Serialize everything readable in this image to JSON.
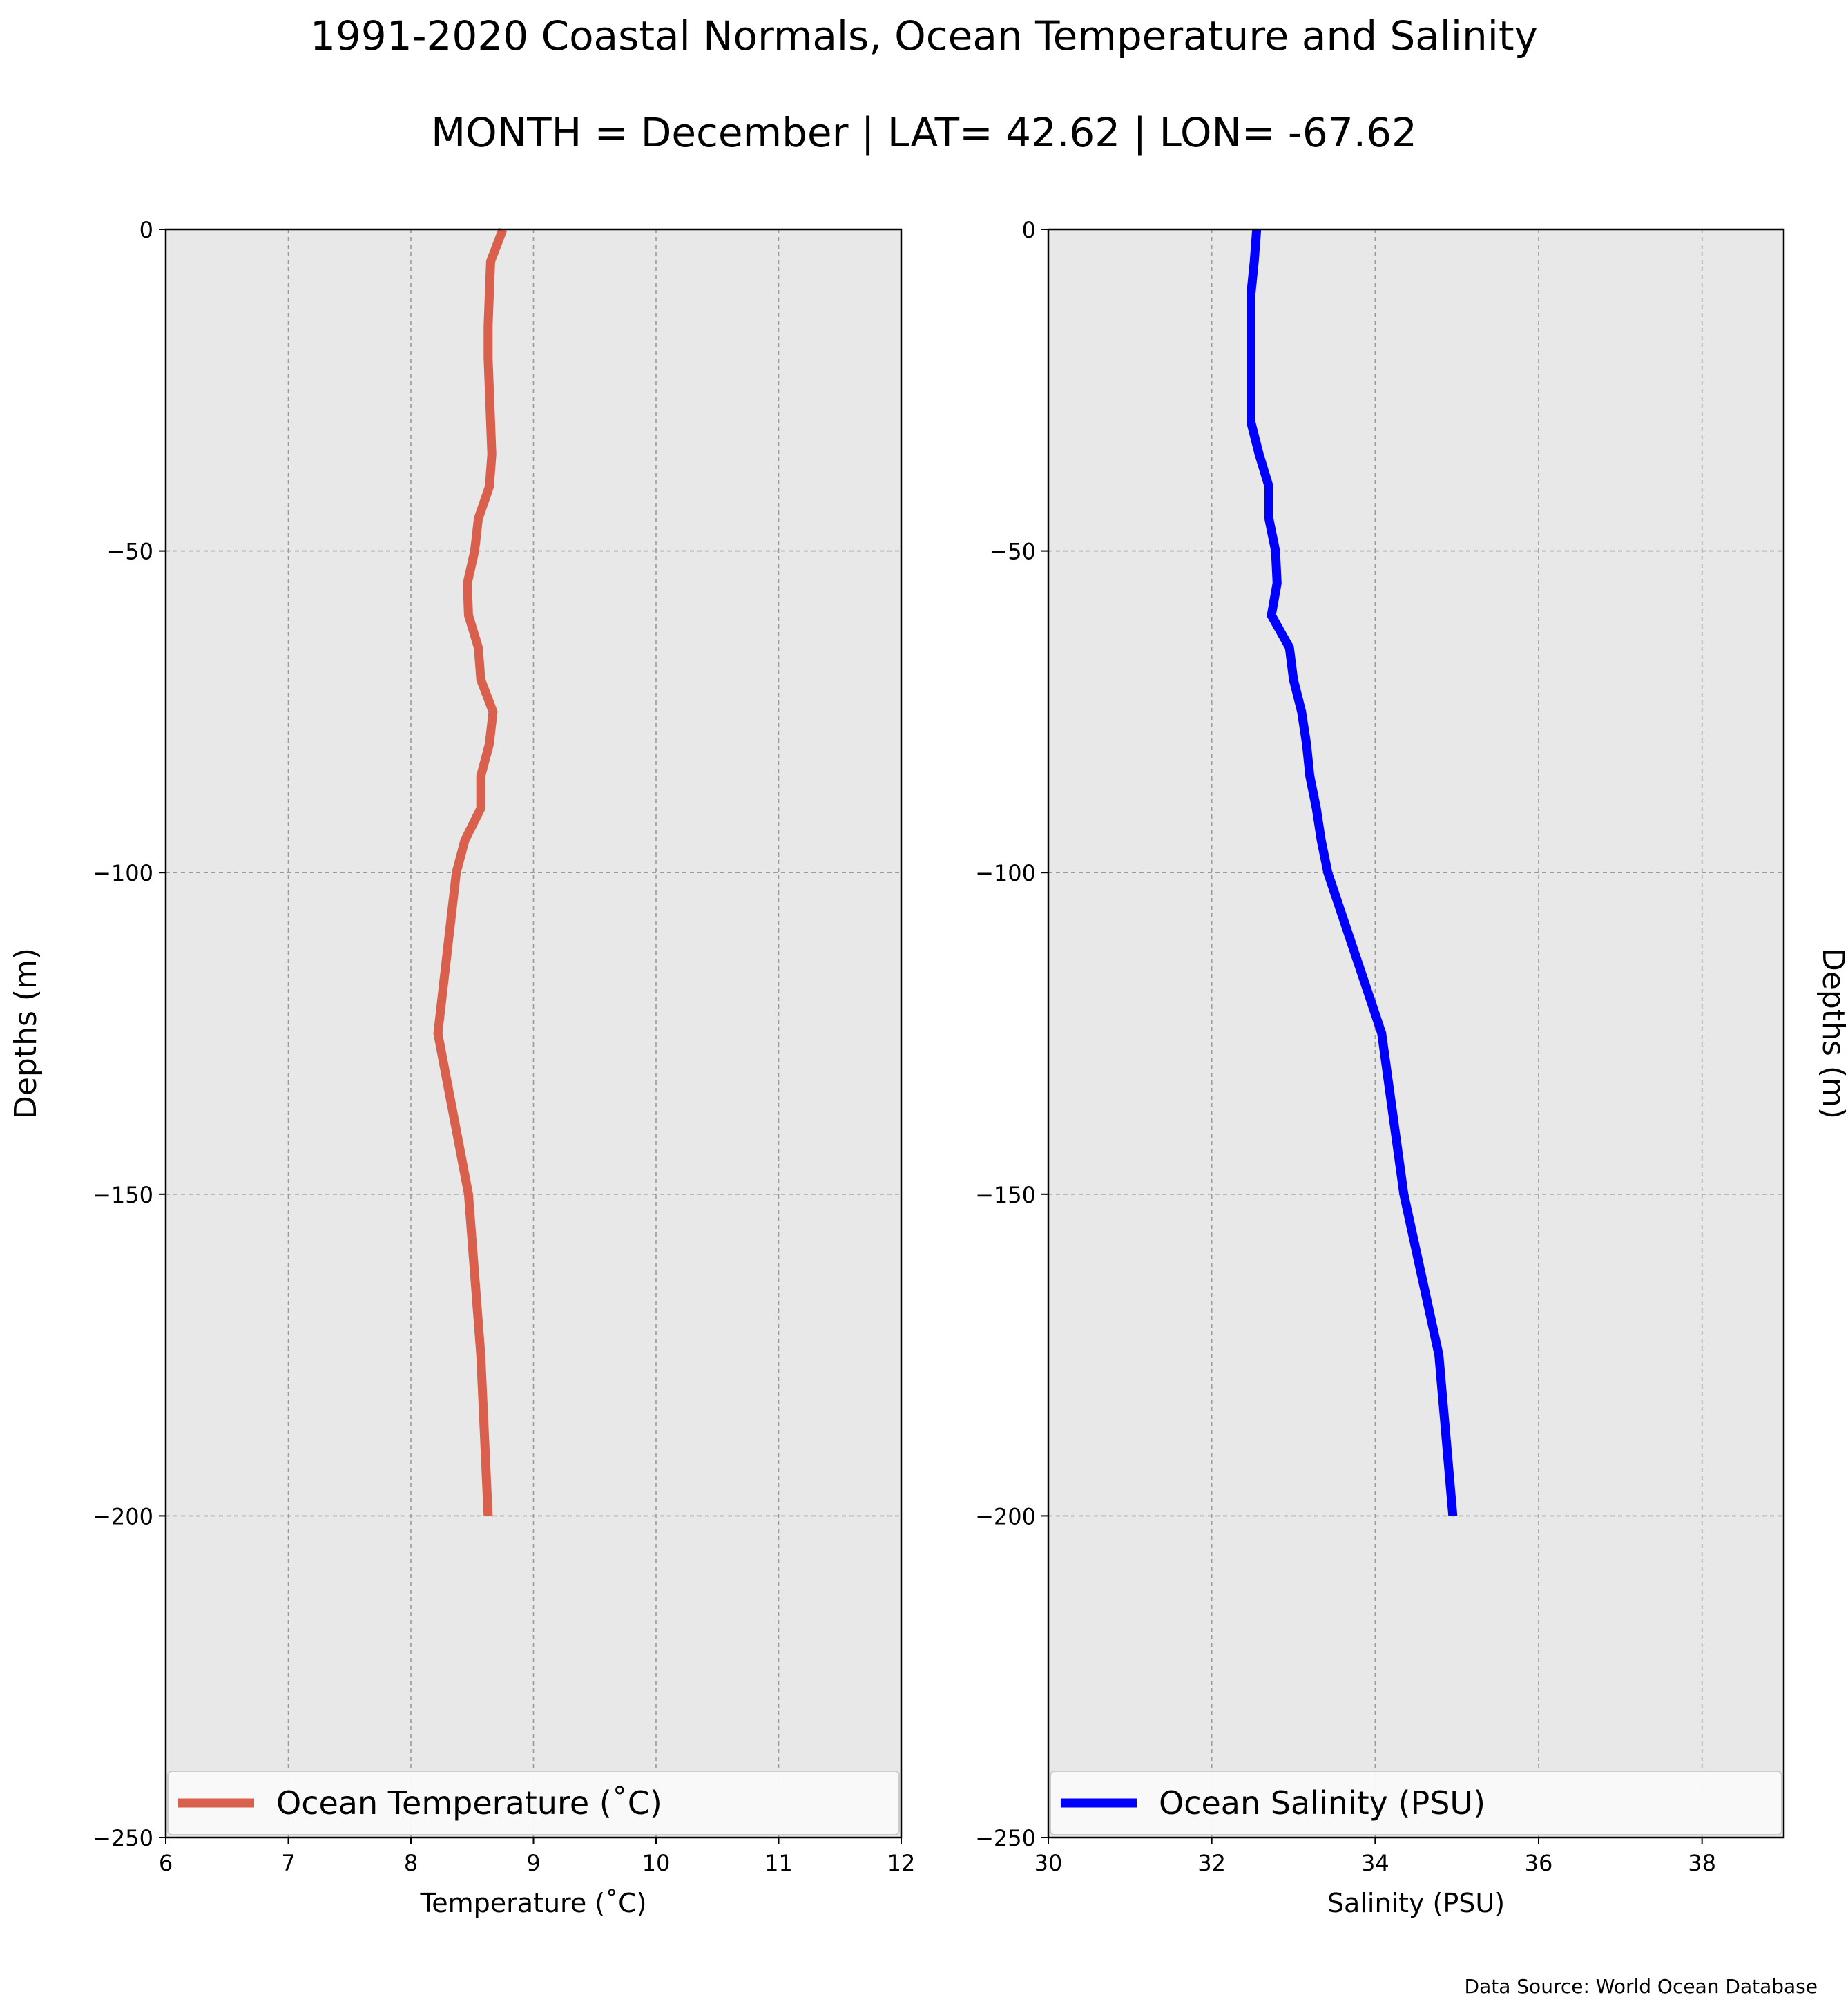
{
  "figure": {
    "title": "1991-2020 Coastal Normals, Ocean Temperature and Salinity",
    "subtitle": "MONTH = December | LAT= 42.62 | LON= -67.62",
    "source": "Data Source: World Ocean Database"
  },
  "chart_data": [
    {
      "type": "line",
      "xlabel": "Temperature ($^\\circ$C)",
      "xlabel_display": "Temperature (˚C)",
      "ylabel": "Depths (m)",
      "xlim": [
        6,
        12
      ],
      "ylim": [
        -250,
        0
      ],
      "xticks": [
        6,
        7,
        8,
        9,
        10,
        11,
        12
      ],
      "yticks": [
        0,
        -50,
        -100,
        -150,
        -200,
        -250
      ],
      "xtick_labels": [
        "6",
        "7",
        "8",
        "9",
        "10",
        "11",
        "12"
      ],
      "ytick_labels": [
        "0",
        "−50",
        "−100",
        "−150",
        "−200",
        "−250"
      ],
      "grid": true,
      "legend_position": "bottom",
      "series": [
        {
          "name": "Ocean Temperature (˚C)",
          "color": "#d9604c",
          "x": [
            8.75,
            8.65,
            8.64,
            8.63,
            8.63,
            8.64,
            8.65,
            8.66,
            8.64,
            8.55,
            8.52,
            8.46,
            8.47,
            8.55,
            8.57,
            8.67,
            8.64,
            8.57,
            8.57,
            8.44,
            8.37,
            8.22,
            8.47,
            8.57,
            8.63
          ],
          "y": [
            0,
            -5,
            -10,
            -15,
            -20,
            -25,
            -30,
            -35,
            -40,
            -45,
            -50,
            -55,
            -60,
            -65,
            -70,
            -75,
            -80,
            -85,
            -90,
            -95,
            -100,
            -125,
            -150,
            -175,
            -200
          ]
        }
      ]
    },
    {
      "type": "line",
      "xlabel": "Salinity (PSU)",
      "xlabel_display": "Salinity (PSU)",
      "ylabel": "Depths (m)",
      "xlim": [
        30,
        39
      ],
      "ylim": [
        -250,
        0
      ],
      "xticks": [
        30,
        32,
        34,
        36,
        38
      ],
      "yticks": [
        0,
        -50,
        -100,
        -150,
        -200,
        -250
      ],
      "xtick_labels": [
        "30",
        "32",
        "34",
        "36",
        "38"
      ],
      "ytick_labels": [
        "0",
        "−50",
        "−100",
        "−150",
        "−200",
        "−250"
      ],
      "grid": true,
      "legend_position": "bottom",
      "series": [
        {
          "name": "Ocean Salinity (PSU)",
          "color": "#0000ff",
          "x": [
            32.55,
            32.52,
            32.48,
            32.48,
            32.48,
            32.48,
            32.48,
            32.58,
            32.7,
            32.7,
            32.78,
            32.8,
            32.73,
            32.95,
            33.0,
            33.1,
            33.16,
            33.2,
            33.28,
            33.34,
            33.42,
            34.08,
            34.35,
            34.78,
            34.95
          ],
          "y": [
            0,
            -5,
            -10,
            -15,
            -20,
            -25,
            -30,
            -35,
            -40,
            -45,
            -50,
            -55,
            -60,
            -65,
            -70,
            -75,
            -80,
            -85,
            -90,
            -95,
            -100,
            -125,
            -150,
            -175,
            -200
          ]
        }
      ]
    }
  ]
}
